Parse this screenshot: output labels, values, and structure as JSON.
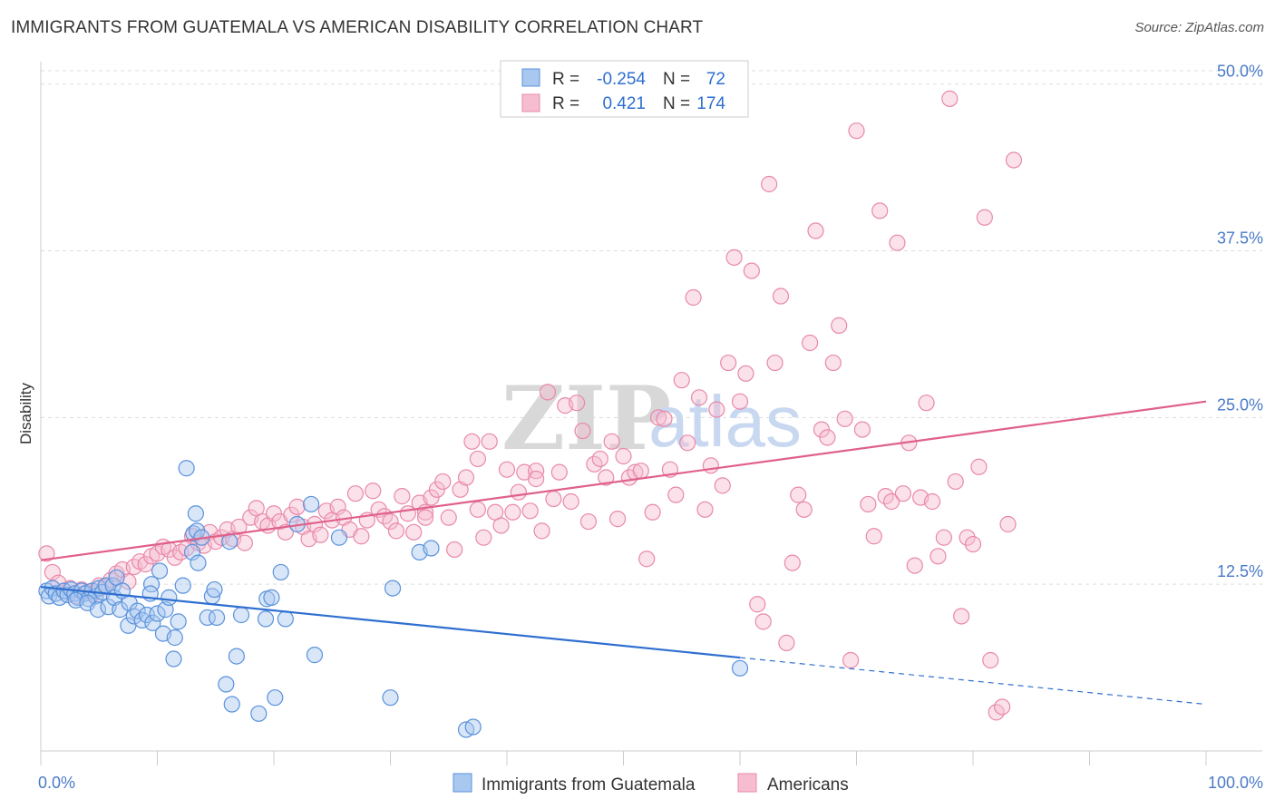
{
  "title": "IMMIGRANTS FROM GUATEMALA VS AMERICAN DISABILITY CORRELATION CHART",
  "source": "Source: ZipAtlas.com",
  "watermark": {
    "left": "ZIP",
    "right": "atlas"
  },
  "colors": {
    "series1_fill": "#a9c8f0",
    "series1_stroke": "#5a92dc",
    "series1_line": "#2f6fd0",
    "series2_fill": "#f6bdd0",
    "series2_stroke": "#e889a9",
    "series2_line": "#e0608a",
    "axis_label": "#4a7bc8",
    "grid": "#dddddd"
  },
  "legend": {
    "rows": [
      {
        "r_label": "R =",
        "r_value": "-0.254",
        "n_label": "N =",
        "n_value": "72"
      },
      {
        "r_label": "R =",
        "r_value": "0.421",
        "n_label": "N =",
        "n_value": "174"
      }
    ]
  },
  "chart_data": {
    "type": "scatter",
    "title": "IMMIGRANTS FROM GUATEMALA VS AMERICAN DISABILITY CORRELATION CHART",
    "xlabel": "",
    "ylabel": "Disability",
    "xlim": [
      0,
      100
    ],
    "ylim": [
      0,
      51
    ],
    "x_tick_labels": [
      "0.0%",
      "100.0%"
    ],
    "y_ticks": [
      12.5,
      25.0,
      37.5,
      50.0
    ],
    "y_tick_labels": [
      "12.5%",
      "25.0%",
      "37.5%",
      "50.0%"
    ],
    "grid": true,
    "legend_position": "top-center",
    "series": [
      {
        "name": "Immigrants from Guatemala",
        "trend": {
          "x0": 0,
          "y0": 12.3,
          "x1": 60,
          "y1": 7.0,
          "dashed_to_x": 100,
          "dashed_to_y": 3.5
        },
        "points": [
          [
            0.5,
            12.0
          ],
          [
            0.7,
            11.6
          ],
          [
            1.0,
            12.2
          ],
          [
            1.3,
            11.8
          ],
          [
            1.6,
            11.5
          ],
          [
            2.0,
            12.0
          ],
          [
            2.3,
            11.7
          ],
          [
            2.6,
            12.1
          ],
          [
            2.9,
            11.8
          ],
          [
            3.2,
            11.5
          ],
          [
            3.5,
            12.0
          ],
          [
            3.8,
            11.8
          ],
          [
            4.1,
            11.4
          ],
          [
            4.4,
            12.0
          ],
          [
            4.7,
            11.6
          ],
          [
            5.0,
            12.2
          ],
          [
            5.3,
            11.9
          ],
          [
            5.6,
            12.4
          ],
          [
            3.0,
            11.3
          ],
          [
            4.0,
            11.1
          ],
          [
            4.9,
            10.6
          ],
          [
            5.8,
            10.8
          ],
          [
            6.2,
            12.4
          ],
          [
            6.5,
            13.0
          ],
          [
            6.3,
            11.5
          ],
          [
            6.8,
            10.6
          ],
          [
            7.0,
            12.0
          ],
          [
            7.5,
            9.4
          ],
          [
            7.6,
            11.1
          ],
          [
            8.0,
            10.1
          ],
          [
            8.3,
            10.5
          ],
          [
            8.7,
            9.8
          ],
          [
            9.1,
            10.2
          ],
          [
            9.6,
            9.6
          ],
          [
            10.0,
            10.3
          ],
          [
            9.5,
            12.5
          ],
          [
            9.4,
            11.8
          ],
          [
            10.2,
            13.5
          ],
          [
            10.5,
            8.8
          ],
          [
            10.7,
            10.6
          ],
          [
            11.0,
            11.5
          ],
          [
            11.4,
            6.9
          ],
          [
            11.5,
            8.5
          ],
          [
            11.8,
            9.7
          ],
          [
            12.2,
            12.4
          ],
          [
            12.5,
            21.2
          ],
          [
            13.0,
            14.9
          ],
          [
            13.1,
            16.3
          ],
          [
            13.3,
            17.8
          ],
          [
            13.4,
            16.5
          ],
          [
            13.5,
            14.1
          ],
          [
            13.8,
            16.0
          ],
          [
            14.3,
            10.0
          ],
          [
            14.7,
            11.6
          ],
          [
            14.9,
            12.1
          ],
          [
            15.1,
            10.0
          ],
          [
            15.9,
            5.0
          ],
          [
            16.2,
            15.7
          ],
          [
            16.4,
            3.5
          ],
          [
            16.8,
            7.1
          ],
          [
            17.2,
            10.2
          ],
          [
            18.7,
            2.8
          ],
          [
            19.3,
            9.9
          ],
          [
            19.4,
            11.4
          ],
          [
            19.8,
            11.5
          ],
          [
            20.1,
            4.0
          ],
          [
            20.6,
            13.4
          ],
          [
            21.0,
            9.9
          ],
          [
            22.0,
            17.0
          ],
          [
            23.2,
            18.5
          ],
          [
            23.5,
            7.2
          ],
          [
            25.6,
            16.0
          ],
          [
            30.0,
            4.0
          ],
          [
            30.2,
            12.2
          ],
          [
            32.5,
            14.9
          ],
          [
            33.5,
            15.2
          ],
          [
            36.5,
            1.6
          ],
          [
            37.1,
            1.8
          ],
          [
            60.0,
            6.2
          ]
        ]
      },
      {
        "name": "Americans",
        "trend": {
          "x0": 0,
          "y0": 14.3,
          "x1": 100,
          "y1": 26.2
        },
        "points": [
          [
            0.5,
            14.8
          ],
          [
            1.0,
            13.4
          ],
          [
            1.5,
            12.6
          ],
          [
            2.0,
            12.0
          ],
          [
            2.5,
            12.2
          ],
          [
            3.0,
            11.6
          ],
          [
            3.5,
            12.1
          ],
          [
            4.0,
            11.9
          ],
          [
            4.5,
            11.8
          ],
          [
            5.0,
            12.4
          ],
          [
            5.5,
            12.3
          ],
          [
            6.0,
            12.8
          ],
          [
            6.5,
            13.3
          ],
          [
            7.0,
            13.6
          ],
          [
            7.5,
            12.7
          ],
          [
            8.0,
            13.8
          ],
          [
            8.5,
            14.2
          ],
          [
            9.0,
            14.0
          ],
          [
            9.5,
            14.6
          ],
          [
            10.0,
            14.8
          ],
          [
            10.5,
            15.3
          ],
          [
            11.0,
            15.1
          ],
          [
            11.5,
            14.5
          ],
          [
            12.0,
            14.9
          ],
          [
            12.5,
            15.2
          ],
          [
            13.0,
            16.1
          ],
          [
            13.5,
            15.6
          ],
          [
            14.0,
            15.4
          ],
          [
            14.5,
            16.4
          ],
          [
            15.0,
            15.7
          ],
          [
            15.5,
            16.0
          ],
          [
            16.0,
            16.6
          ],
          [
            16.5,
            15.9
          ],
          [
            17.0,
            16.8
          ],
          [
            17.5,
            15.6
          ],
          [
            18.0,
            17.5
          ],
          [
            18.5,
            18.2
          ],
          [
            19.0,
            17.2
          ],
          [
            19.5,
            16.9
          ],
          [
            20.0,
            17.8
          ],
          [
            20.5,
            17.2
          ],
          [
            21.0,
            16.4
          ],
          [
            21.5,
            17.7
          ],
          [
            22.0,
            18.3
          ],
          [
            22.5,
            16.8
          ],
          [
            23.0,
            15.9
          ],
          [
            23.5,
            17.0
          ],
          [
            24.0,
            16.2
          ],
          [
            24.5,
            18.0
          ],
          [
            25.0,
            17.3
          ],
          [
            25.5,
            18.3
          ],
          [
            26.0,
            17.5
          ],
          [
            26.5,
            16.6
          ],
          [
            27.0,
            19.3
          ],
          [
            27.5,
            16.1
          ],
          [
            28.0,
            17.3
          ],
          [
            28.5,
            19.5
          ],
          [
            29.0,
            18.1
          ],
          [
            29.5,
            17.6
          ],
          [
            30.0,
            17.2
          ],
          [
            30.5,
            16.5
          ],
          [
            31.0,
            19.1
          ],
          [
            31.5,
            17.8
          ],
          [
            32.0,
            16.4
          ],
          [
            32.5,
            18.6
          ],
          [
            33.0,
            17.9
          ],
          [
            33.5,
            19.0
          ],
          [
            34.0,
            19.6
          ],
          [
            34.5,
            20.2
          ],
          [
            35.0,
            17.5
          ],
          [
            35.5,
            15.1
          ],
          [
            36.0,
            19.6
          ],
          [
            36.5,
            20.5
          ],
          [
            37.0,
            23.2
          ],
          [
            37.5,
            18.1
          ],
          [
            38.0,
            16.0
          ],
          [
            38.5,
            23.2
          ],
          [
            39.0,
            17.9
          ],
          [
            39.5,
            16.9
          ],
          [
            40.0,
            21.1
          ],
          [
            40.5,
            17.9
          ],
          [
            41.0,
            19.4
          ],
          [
            41.5,
            20.9
          ],
          [
            42.0,
            18.0
          ],
          [
            42.5,
            21.0
          ],
          [
            43.0,
            16.5
          ],
          [
            43.5,
            26.9
          ],
          [
            44.0,
            18.9
          ],
          [
            44.5,
            20.9
          ],
          [
            45.0,
            25.9
          ],
          [
            45.5,
            18.7
          ],
          [
            46.0,
            26.1
          ],
          [
            46.5,
            24.0
          ],
          [
            47.0,
            17.2
          ],
          [
            47.5,
            21.5
          ],
          [
            48.0,
            21.9
          ],
          [
            48.5,
            20.5
          ],
          [
            49.0,
            23.2
          ],
          [
            49.5,
            17.4
          ],
          [
            50.0,
            22.1
          ],
          [
            50.5,
            20.5
          ],
          [
            51.0,
            20.9
          ],
          [
            51.5,
            21.0
          ],
          [
            52.0,
            14.4
          ],
          [
            52.5,
            17.9
          ],
          [
            53.0,
            25.0
          ],
          [
            53.5,
            24.9
          ],
          [
            54.0,
            21.1
          ],
          [
            54.5,
            19.2
          ],
          [
            55.0,
            27.8
          ],
          [
            55.5,
            23.1
          ],
          [
            56.0,
            34.0
          ],
          [
            56.5,
            26.5
          ],
          [
            57.0,
            18.1
          ],
          [
            57.5,
            21.4
          ],
          [
            58.0,
            25.6
          ],
          [
            58.5,
            19.9
          ],
          [
            59.0,
            29.1
          ],
          [
            59.5,
            37.0
          ],
          [
            60.0,
            26.2
          ],
          [
            60.5,
            28.3
          ],
          [
            61.0,
            36.0
          ],
          [
            61.5,
            11.0
          ],
          [
            62.0,
            9.7
          ],
          [
            62.5,
            42.5
          ],
          [
            63.0,
            29.1
          ],
          [
            63.5,
            34.1
          ],
          [
            64.0,
            8.1
          ],
          [
            64.5,
            14.1
          ],
          [
            65.0,
            19.2
          ],
          [
            65.5,
            18.1
          ],
          [
            66.0,
            30.6
          ],
          [
            66.5,
            39.0
          ],
          [
            67.0,
            24.1
          ],
          [
            67.5,
            23.5
          ],
          [
            68.0,
            29.1
          ],
          [
            68.5,
            31.9
          ],
          [
            69.0,
            24.9
          ],
          [
            69.5,
            6.8
          ],
          [
            70.0,
            46.5
          ],
          [
            70.5,
            24.1
          ],
          [
            71.0,
            18.5
          ],
          [
            71.5,
            16.1
          ],
          [
            72.0,
            40.5
          ],
          [
            72.5,
            19.1
          ],
          [
            73.0,
            18.7
          ],
          [
            73.5,
            38.1
          ],
          [
            74.0,
            19.3
          ],
          [
            74.5,
            23.1
          ],
          [
            75.0,
            13.9
          ],
          [
            75.5,
            19.0
          ],
          [
            76.0,
            26.1
          ],
          [
            76.5,
            18.7
          ],
          [
            77.0,
            14.6
          ],
          [
            77.5,
            16.0
          ],
          [
            78.0,
            48.9
          ],
          [
            78.5,
            20.2
          ],
          [
            79.0,
            10.1
          ],
          [
            79.5,
            16.0
          ],
          [
            80.0,
            15.5
          ],
          [
            80.5,
            21.3
          ],
          [
            81.0,
            40.0
          ],
          [
            81.5,
            6.8
          ],
          [
            82.0,
            2.9
          ],
          [
            82.5,
            3.3
          ],
          [
            83.0,
            17.0
          ],
          [
            83.5,
            44.3
          ],
          [
            37.5,
            21.9
          ],
          [
            33.0,
            17.5
          ],
          [
            42.5,
            20.4
          ]
        ]
      }
    ]
  },
  "bottom_legend": {
    "series1_label": "Immigrants from Guatemala",
    "series2_label": "Americans"
  }
}
